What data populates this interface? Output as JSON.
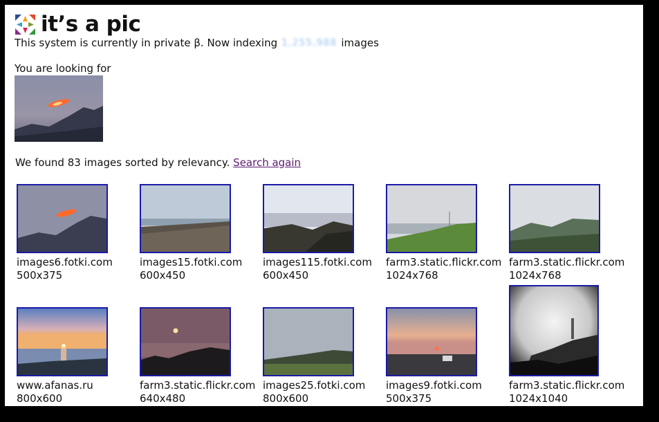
{
  "brand": "it’s a pic",
  "status": {
    "prefix": "This system is currently in private β. Now indexing",
    "count": "1,255,988",
    "suffix": "images"
  },
  "query": {
    "label": "You are looking for"
  },
  "results_summary": {
    "text": "We found 83 images sorted by relevancy.",
    "search_again": "Search again"
  },
  "results": [
    {
      "host": "images6.fotki.com",
      "size": "500x375"
    },
    {
      "host": "images15.fotki.com",
      "size": "600x450"
    },
    {
      "host": "images115.fotki.com",
      "size": "600x450"
    },
    {
      "host": "farm3.static.flickr.com",
      "size": "1024x768"
    },
    {
      "host": "farm3.static.flickr.com",
      "size": "1024x768"
    },
    {
      "host": "www.afanas.ru",
      "size": "800x600"
    },
    {
      "host": "farm3.static.flickr.com",
      "size": "640x480"
    },
    {
      "host": "images25.fotki.com",
      "size": "800x600"
    },
    {
      "host": "images9.fotki.com",
      "size": "500x375"
    },
    {
      "host": "farm3.static.flickr.com",
      "size": "1024x1040"
    }
  ]
}
